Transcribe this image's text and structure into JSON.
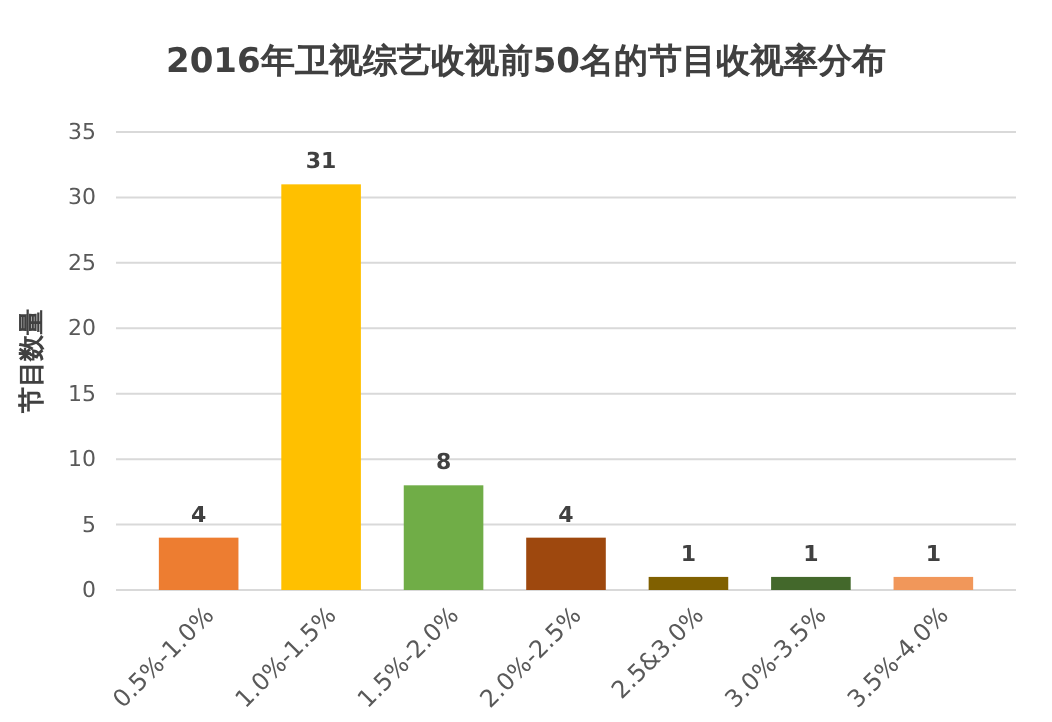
{
  "chart_data": {
    "type": "bar",
    "title": "2016年卫视综艺收视前50名的节目收视率分布",
    "ylabel": "节目数量",
    "categories": [
      "0.5%-1.0%",
      "1.0%-1.5%",
      "1.5%-2.0%",
      "2.0%-2.5%",
      "2.5&3.0%",
      "3.0%-3.5%",
      "3.5%-4.0%"
    ],
    "values": [
      4,
      31,
      8,
      4,
      1,
      1,
      1
    ],
    "colors": [
      "#ed7d31",
      "#ffc000",
      "#70ad47",
      "#9e480e",
      "#806000",
      "#43682b",
      "#f1975a"
    ],
    "ylim": [
      0,
      35
    ],
    "yticks": [
      0,
      5,
      10,
      15,
      20,
      25,
      30,
      35
    ],
    "grid": "y",
    "data_labels": true
  }
}
